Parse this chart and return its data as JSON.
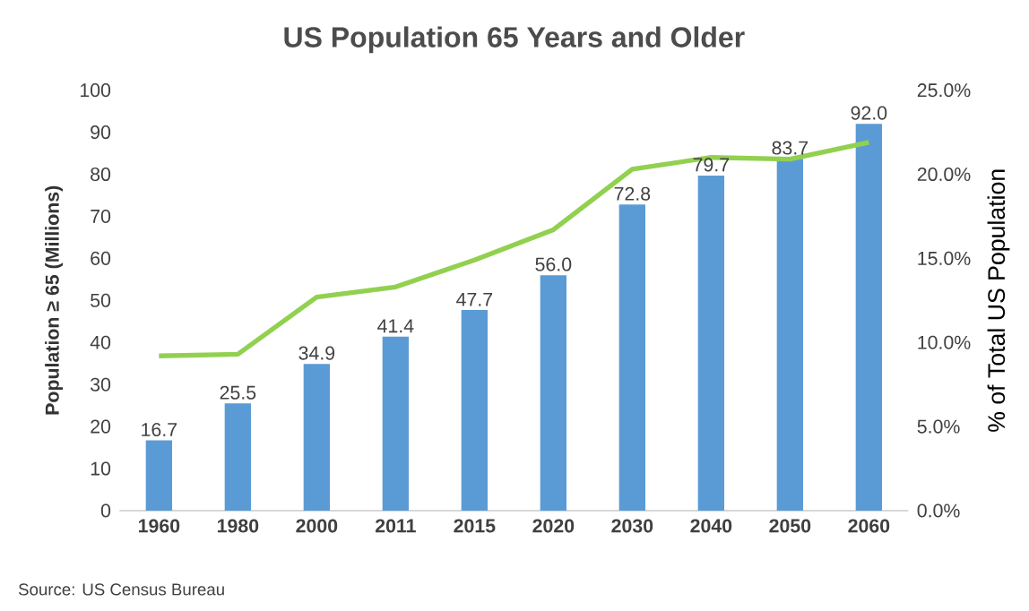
{
  "chart_data": {
    "type": "line",
    "title": "US Population 65 Years and Older",
    "categories": [
      "1960",
      "1980",
      "2000",
      "2011",
      "2015",
      "2020",
      "2030",
      "2040",
      "2050",
      "2060"
    ],
    "series": [
      {
        "type": "bar",
        "color": "#5b9bd5",
        "values": [
          16.7,
          25.5,
          34.9,
          41.4,
          47.7,
          56.0,
          72.8,
          79.7,
          83.7,
          92.0
        ],
        "value_labels": [
          "16.7",
          "25.5",
          "34.9",
          "41.4",
          "47.7",
          "56.0",
          "72.8",
          "79.7",
          "83.7",
          "92.0"
        ]
      },
      {
        "axis": "y2",
        "color": "#92d050",
        "values": [
          9.2,
          9.3,
          12.7,
          13.3,
          14.9,
          16.7,
          20.3,
          21.0,
          20.9,
          21.9
        ]
      }
    ],
    "ylabel": "Population ≥ 65 (Millions)",
    "y2label": "% of Total US Population",
    "ylim": [
      0,
      100
    ],
    "yticks": [
      0,
      10,
      20,
      30,
      40,
      50,
      60,
      70,
      80,
      90,
      100
    ],
    "y2lim": [
      0,
      25
    ],
    "y2ticks": [
      {
        "value": 0,
        "label": "0.0%"
      },
      {
        "value": 5,
        "label": "5.0%"
      },
      {
        "value": 10,
        "label": "10.0%"
      },
      {
        "value": 15,
        "label": "15.0%"
      },
      {
        "value": 20,
        "label": "20.0%"
      },
      {
        "value": 25,
        "label": "25.0%"
      }
    ],
    "grid": false,
    "legend": false,
    "marker": "none",
    "line_style": "solid",
    "annotations": [
      "Source: US Census Bureau"
    ]
  }
}
